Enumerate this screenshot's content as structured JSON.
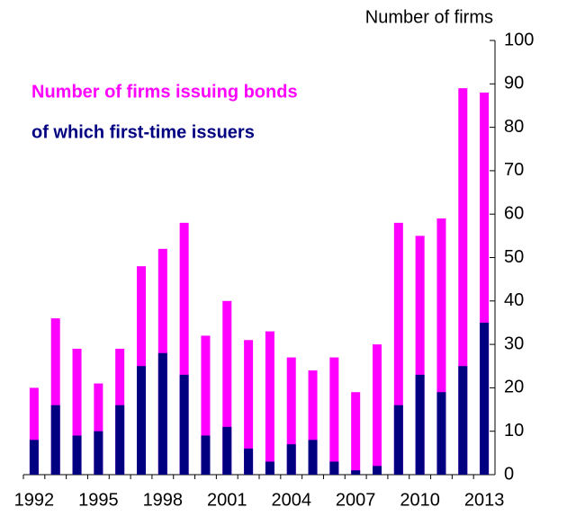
{
  "chart_data": {
    "type": "bar",
    "y_label": "Number of firms",
    "categories": [
      "1992",
      null,
      null,
      "1995",
      null,
      null,
      "1998",
      null,
      null,
      "2001",
      null,
      null,
      "2004",
      null,
      null,
      "2007",
      null,
      null,
      "2010",
      null,
      null,
      "2013"
    ],
    "series": [
      {
        "name": "Number of firms issuing bonds",
        "color": "#ff00ff",
        "values": [
          20,
          36,
          29,
          21,
          29,
          48,
          52,
          58,
          32,
          40,
          31,
          33,
          27,
          24,
          27,
          19,
          30,
          58,
          55,
          59,
          89,
          88
        ]
      },
      {
        "name": "of which first-time issuers",
        "color": "#000080",
        "values": [
          8,
          16,
          9,
          10,
          16,
          25,
          28,
          23,
          9,
          11,
          6,
          3,
          7,
          8,
          3,
          1,
          2,
          16,
          23,
          19,
          25,
          35
        ]
      }
    ],
    "ylim": [
      0,
      100
    ],
    "yticks": [
      0,
      10,
      20,
      30,
      40,
      50,
      60,
      70,
      80,
      90,
      100
    ],
    "y_axis_side": "right"
  }
}
